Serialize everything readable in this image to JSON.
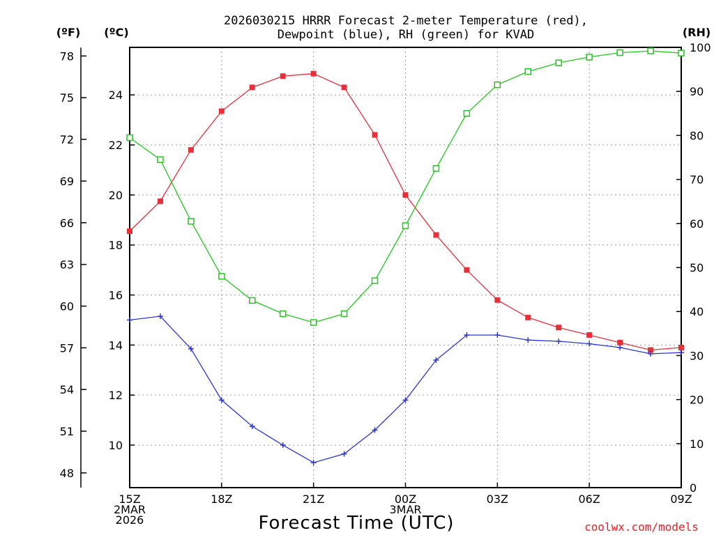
{
  "chart_data": {
    "type": "line",
    "title_line1": "2026030215 HRRR Forecast 2-meter Temperature (red),",
    "title_line2": "Dewpoint (blue), RH (green) for KVAD",
    "xlabel": "Forecast Time (UTC)",
    "credit": "coolwx.com/models",
    "units": {
      "fahrenheit": "(ºF)",
      "celsius": "(ºC)",
      "rh": "(RH)"
    },
    "x": [
      0,
      1,
      2,
      3,
      4,
      5,
      6,
      7,
      8,
      9,
      10,
      11,
      12,
      13,
      14,
      15,
      16,
      17,
      18
    ],
    "xlim": [
      0,
      18
    ],
    "x_ticks": [
      {
        "x": 0,
        "lines": [
          "15Z",
          "2MAR",
          "2026"
        ]
      },
      {
        "x": 3,
        "lines": [
          "18Z"
        ]
      },
      {
        "x": 6,
        "lines": [
          "21Z"
        ]
      },
      {
        "x": 9,
        "lines": [
          "00Z",
          "3MAR"
        ]
      },
      {
        "x": 12,
        "lines": [
          "03Z"
        ]
      },
      {
        "x": 15,
        "lines": [
          "06Z"
        ]
      },
      {
        "x": 18,
        "lines": [
          "09Z"
        ]
      }
    ],
    "celsius_axis": {
      "ylim": [
        8.3,
        25.9
      ],
      "ticks": [
        "10",
        "12",
        "14",
        "16",
        "18",
        "20",
        "22",
        "24"
      ]
    },
    "fahrenheit_axis": {
      "ticks": [
        "48",
        "51",
        "54",
        "57",
        "60",
        "63",
        "66",
        "69",
        "72",
        "75",
        "78"
      ]
    },
    "rh_axis": {
      "ylim": [
        0,
        100
      ],
      "ticks": [
        "0",
        "10",
        "20",
        "30",
        "40",
        "50",
        "60",
        "70",
        "80",
        "90",
        "100"
      ]
    },
    "series": [
      {
        "name": "Temperature",
        "unit": "C",
        "color": "#e8303a",
        "marker": "filled-square",
        "values": [
          18.55,
          19.75,
          21.8,
          23.35,
          24.3,
          24.75,
          24.85,
          24.3,
          22.4,
          20.0,
          18.4,
          17.0,
          15.8,
          15.1,
          14.7,
          14.4,
          14.1,
          13.8,
          13.9
        ]
      },
      {
        "name": "Dewpoint",
        "unit": "C",
        "color": "#2a35d8",
        "marker": "plus",
        "values": [
          15.0,
          15.15,
          13.85,
          11.8,
          10.75,
          10.0,
          9.3,
          9.65,
          10.6,
          11.8,
          13.4,
          14.4,
          14.4,
          14.2,
          14.15,
          14.05,
          13.9,
          13.65,
          13.7
        ]
      },
      {
        "name": "RH",
        "unit": "%",
        "color": "#22c81e",
        "marker": "open-square",
        "values": [
          79.5,
          74.5,
          60.5,
          48.0,
          42.5,
          39.5,
          37.5,
          39.5,
          47.0,
          59.5,
          72.5,
          85.0,
          91.5,
          94.5,
          96.5,
          97.8,
          98.8,
          99.2,
          98.7
        ]
      }
    ]
  }
}
